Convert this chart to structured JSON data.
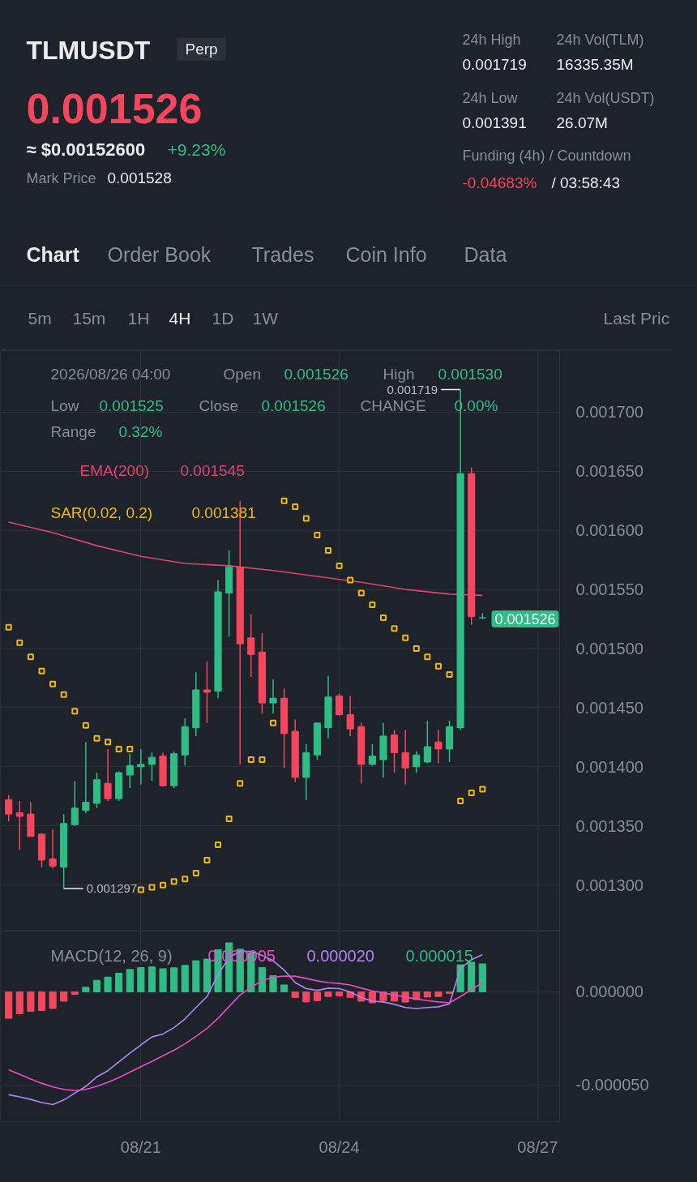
{
  "chart_data": [
    {
      "type": "other",
      "title": "TLMUSDT",
      "annotations": [
        "Perp",
        "0.001526",
        "≈ $0.00152600",
        "+9.23%",
        "Mark Price",
        "0.001528",
        "24h High",
        "0.001719",
        "24h Vol(TLM)",
        "16335.35M",
        "24h Low",
        "0.001391",
        "24h Vol(USDT)",
        "26.07M",
        "Funding (4h) / Countdown",
        "-0.04683%",
        "/ 03:58:43",
        "Chart",
        "Order Book",
        "Trades",
        "Coin Info",
        "Data",
        "5m",
        "15m",
        "1H",
        "4H",
        "1D",
        "1W",
        "Last Pric"
      ]
    },
    {
      "type": "candlestick",
      "x": [
        "2026-08-19T00:00",
        "2026-08-19T04:00",
        "2026-08-19T08:00",
        "2026-08-19T12:00",
        "2026-08-19T16:00",
        "2026-08-19T20:00",
        "2026-08-20T00:00",
        "2026-08-20T04:00",
        "2026-08-20T08:00",
        "2026-08-20T12:00",
        "2026-08-20T16:00",
        "2026-08-20T20:00",
        "2026-08-21T00:00",
        "2026-08-21T04:00",
        "2026-08-21T08:00",
        "2026-08-21T12:00",
        "2026-08-21T16:00",
        "2026-08-21T20:00",
        "2026-08-22T00:00",
        "2026-08-22T04:00",
        "2026-08-22T08:00",
        "2026-08-22T12:00",
        "2026-08-22T16:00",
        "2026-08-22T20:00",
        "2026-08-23T00:00",
        "2026-08-23T04:00",
        "2026-08-23T08:00",
        "2026-08-23T12:00",
        "2026-08-23T16:00",
        "2026-08-23T20:00",
        "2026-08-24T00:00",
        "2026-08-24T04:00",
        "2026-08-24T08:00",
        "2026-08-24T12:00",
        "2026-08-24T16:00",
        "2026-08-24T20:00",
        "2026-08-25T00:00",
        "2026-08-25T04:00",
        "2026-08-25T08:00",
        "2026-08-25T12:00",
        "2026-08-25T16:00",
        "2026-08-25T20:00",
        "2026-08-26T00:00",
        "2026-08-26T04:00"
      ],
      "ohlc": [
        [
          0.001372,
          0.001376,
          0.001354,
          0.00136
        ],
        [
          0.001361,
          0.001371,
          0.00133,
          0.001358
        ],
        [
          0.00136,
          0.00137,
          0.001341,
          0.001341
        ],
        [
          0.001343,
          0.001344,
          0.001315,
          0.001321
        ],
        [
          0.001322,
          0.001347,
          0.001314,
          0.001316
        ],
        [
          0.001315,
          0.00136,
          0.001297,
          0.001352
        ],
        [
          0.001351,
          0.001388,
          0.00135,
          0.001365
        ],
        [
          0.001363,
          0.001421,
          0.001361,
          0.00137
        ],
        [
          0.001369,
          0.001395,
          0.001365,
          0.001389
        ],
        [
          0.001386,
          0.001415,
          0.001371,
          0.001373
        ],
        [
          0.001373,
          0.001396,
          0.001371,
          0.001395
        ],
        [
          0.001393,
          0.001411,
          0.001382,
          0.001401
        ],
        [
          0.0014,
          0.001415,
          0.001385,
          0.001402
        ],
        [
          0.001402,
          0.001412,
          0.001388,
          0.001408
        ],
        [
          0.001409,
          0.001412,
          0.001383,
          0.001384
        ],
        [
          0.001384,
          0.001413,
          0.001382,
          0.001411
        ],
        [
          0.00141,
          0.001441,
          0.001401,
          0.001434
        ],
        [
          0.001433,
          0.00148,
          0.001426,
          0.001465
        ],
        [
          0.001465,
          0.001489,
          0.001437,
          0.001463
        ],
        [
          0.001464,
          0.001558,
          0.001458,
          0.001548
        ],
        [
          0.001547,
          0.001583,
          0.00151,
          0.001569
        ],
        [
          0.001569,
          0.001625,
          0.001402,
          0.001504
        ],
        [
          0.001509,
          0.001529,
          0.001476,
          0.001495
        ],
        [
          0.001497,
          0.001513,
          0.001445,
          0.001454
        ],
        [
          0.001454,
          0.001474,
          0.001445,
          0.001458
        ],
        [
          0.001458,
          0.001466,
          0.001399,
          0.001428
        ],
        [
          0.00143,
          0.00144,
          0.001387,
          0.001391
        ],
        [
          0.001391,
          0.001419,
          0.001372,
          0.001412
        ],
        [
          0.00141,
          0.001437,
          0.001406,
          0.001437
        ],
        [
          0.001433,
          0.001477,
          0.001424,
          0.001459
        ],
        [
          0.00146,
          0.001462,
          0.001443,
          0.001444
        ],
        [
          0.001444,
          0.00146,
          0.001426,
          0.001432
        ],
        [
          0.001434,
          0.001437,
          0.001386,
          0.001402
        ],
        [
          0.001402,
          0.001419,
          0.001401,
          0.001409
        ],
        [
          0.001406,
          0.001437,
          0.001391,
          0.001426
        ],
        [
          0.001427,
          0.001431,
          0.001395,
          0.001412
        ],
        [
          0.001412,
          0.001431,
          0.001385,
          0.001399
        ],
        [
          0.0014,
          0.001413,
          0.001395,
          0.00141
        ],
        [
          0.001404,
          0.001439,
          0.001403,
          0.001417
        ],
        [
          0.001421,
          0.001431,
          0.001403,
          0.001415
        ],
        [
          0.001415,
          0.001439,
          0.001404,
          0.001434
        ],
        [
          0.001433,
          0.001719,
          0.001431,
          0.001648
        ],
        [
          0.001648,
          0.001653,
          0.00152,
          0.001527
        ],
        [
          0.001526,
          0.00153,
          0.001525,
          0.001526
        ]
      ],
      "colors": [
        "#f6465d",
        "#f6465d",
        "#f6465d",
        "#f6465d",
        "#f6465d",
        "#2ebd85",
        "#2ebd85",
        "#2ebd85",
        "#2ebd85",
        "#f6465d",
        "#2ebd85",
        "#2ebd85",
        "#2ebd85",
        "#2ebd85",
        "#f6465d",
        "#2ebd85",
        "#2ebd85",
        "#2ebd85",
        "#f6465d",
        "#2ebd85",
        "#2ebd85",
        "#f6465d",
        "#f6465d",
        "#f6465d",
        "#2ebd85",
        "#f6465d",
        "#f6465d",
        "#2ebd85",
        "#2ebd85",
        "#2ebd85",
        "#f6465d",
        "#f6465d",
        "#f6465d",
        "#2ebd85",
        "#2ebd85",
        "#f6465d",
        "#f6465d",
        "#2ebd85",
        "#2ebd85",
        "#f6465d",
        "#2ebd85",
        "#2ebd85",
        "#f6465d",
        "#2ebd85"
      ],
      "series": [
        {
          "name": "EMA(200)",
          "type": "line",
          "color": "#e0436f",
          "x": [
            "2026-08-19T00:00",
            "2026-08-19T16:00",
            "2026-08-20T08:00",
            "2026-08-21T00:00",
            "2026-08-21T16:00",
            "2026-08-22T08:00",
            "2026-08-23T00:00",
            "2026-08-23T16:00",
            "2026-08-24T08:00",
            "2026-08-25T00:00",
            "2026-08-25T16:00",
            "2026-08-26T04:00"
          ],
          "values": [
            0.001607,
            0.001598,
            0.001587,
            0.001578,
            0.001572,
            0.00157,
            0.001566,
            0.001561,
            0.001556,
            0.00155,
            0.001546,
            0.001545
          ]
        },
        {
          "name": "SAR(0.02, 0.2)",
          "type": "scatter",
          "marker": "square",
          "color": "#f0b90b",
          "values": [
            0.001518,
            0.001505,
            0.001493,
            0.001481,
            0.00147,
            0.001461,
            0.001447,
            0.001435,
            0.001424,
            0.001421,
            0.001415,
            0.001415,
            0.001296,
            0.001298,
            0.0013,
            0.001303,
            0.001305,
            0.00131,
            0.001321,
            0.001334,
            0.001356,
            0.001386,
            0.001406,
            0.001406,
            0.001437,
            0.001625,
            0.00162,
            0.00161,
            0.001596,
            0.001583,
            0.00157,
            0.001558,
            0.001547,
            0.001537,
            0.001526,
            0.001517,
            0.001509,
            0.0015,
            0.001493,
            0.001485,
            0.001478,
            0.001371,
            0.001378,
            0.001381
          ]
        }
      ],
      "xlim": [
        "2026-08-18T21:00",
        "2026-08-27T08:00"
      ],
      "xticks": [
        {
          "value": "2026-08-21",
          "label": null
        },
        {
          "value": "2026-08-24",
          "label": null
        },
        {
          "value": "2026-08-27",
          "label": null
        }
      ],
      "ylim": [
        0.001261,
        0.001752
      ],
      "yticks": [
        {
          "value": 0.0013,
          "label": "0.001300"
        },
        {
          "value": 0.00135,
          "label": "0.001350"
        },
        {
          "value": 0.0014,
          "label": "0.001400"
        },
        {
          "value": 0.00145,
          "label": "0.001450"
        },
        {
          "value": 0.0015,
          "label": "0.001500"
        },
        {
          "value": 0.00155,
          "label": "0.001550"
        },
        {
          "value": 0.0016,
          "label": "0.001600"
        },
        {
          "value": 0.00165,
          "label": "0.001650"
        },
        {
          "value": 0.0017,
          "label": "0.001700"
        }
      ],
      "grid": true,
      "tick_labels": "y",
      "annotations": [
        "2026/08/26 04:00",
        "Open",
        "0.001526",
        "High",
        "0.001530",
        "Low",
        "0.001525",
        "Close",
        "0.001526",
        "CHANGE",
        "0.00%",
        "Range",
        "0.32%",
        "0.001545",
        "0.001381",
        {
          "text": "0.001719",
          "x": "2026-08-25T20:00",
          "y": 0.001719
        },
        {
          "text": "0.001297",
          "x": "2026-08-19T20:00",
          "y": 0.001297
        },
        "0.001526"
      ]
    },
    {
      "type": "bar",
      "title": "MACD(12, 26, 9)",
      "x": [
        "2026-08-19T00:00",
        "2026-08-19T04:00",
        "2026-08-19T08:00",
        "2026-08-19T12:00",
        "2026-08-19T16:00",
        "2026-08-19T20:00",
        "2026-08-20T00:00",
        "2026-08-20T04:00",
        "2026-08-20T08:00",
        "2026-08-20T12:00",
        "2026-08-20T16:00",
        "2026-08-20T20:00",
        "2026-08-21T00:00",
        "2026-08-21T04:00",
        "2026-08-21T08:00",
        "2026-08-21T12:00",
        "2026-08-21T16:00",
        "2026-08-21T20:00",
        "2026-08-22T00:00",
        "2026-08-22T04:00",
        "2026-08-22T08:00",
        "2026-08-22T12:00",
        "2026-08-22T16:00",
        "2026-08-22T20:00",
        "2026-08-23T00:00",
        "2026-08-23T04:00",
        "2026-08-23T08:00",
        "2026-08-23T12:00",
        "2026-08-23T16:00",
        "2026-08-23T20:00",
        "2026-08-24T00:00",
        "2026-08-24T04:00",
        "2026-08-24T08:00",
        "2026-08-24T12:00",
        "2026-08-24T16:00",
        "2026-08-24T20:00",
        "2026-08-25T00:00",
        "2026-08-25T04:00",
        "2026-08-25T08:00",
        "2026-08-25T12:00",
        "2026-08-25T16:00",
        "2026-08-25T20:00",
        "2026-08-26T00:00",
        "2026-08-26T04:00"
      ],
      "series": [
        {
          "type": "bar",
          "colors": [
            "#f6465d",
            "#f6465d",
            "#f6465d",
            "#f6465d",
            "#f6465d",
            "#f6465d",
            "#f6465d",
            "#2ebd85",
            "#2ebd85",
            "#2ebd85",
            "#2ebd85",
            "#2ebd85",
            "#2ebd85",
            "#2ebd85",
            "#2ebd85",
            "#2ebd85",
            "#2ebd85",
            "#2ebd85",
            "#2ebd85",
            "#2ebd85",
            "#2ebd85",
            "#2ebd85",
            "#2ebd85",
            "#2ebd85",
            "#2ebd85",
            "#2ebd85",
            "#f6465d",
            "#f6465d",
            "#f6465d",
            "#f6465d",
            "#f6465d",
            "#f6465d",
            "#f6465d",
            "#f6465d",
            "#f6465d",
            "#f6465d",
            "#f6465d",
            "#f6465d",
            "#f6465d",
            "#f6465d",
            "#f6465d",
            "#2ebd85",
            "#2ebd85",
            "#2ebd85"
          ],
          "values": [
            -1.42e-05,
            -1.17e-05,
            -1.05e-05,
            -1e-05,
            -8.9e-06,
            -5e-06,
            -1.3e-06,
            2.5e-06,
            6.2e-06,
            7.9e-06,
            1e-05,
            1.2e-05,
            1.3e-05,
            1.34e-05,
            1.24e-05,
            1.29e-05,
            1.42e-05,
            1.67e-05,
            1.76e-05,
            2.26e-05,
            2.63e-05,
            2.29e-05,
            2.09e-05,
            1.3e-05,
            8.7e-06,
            3.7e-06,
            -3e-06,
            -5.4e-06,
            -4.7e-06,
            -2.5e-06,
            -2.2e-06,
            -3e-06,
            -5e-06,
            -5.9e-06,
            -4.7e-06,
            -5e-06,
            -5.5e-06,
            -4.2e-06,
            -2.8e-06,
            -2.5e-06,
            -8e-07,
            1.45e-05,
            1.59e-05,
            1.5e-05
          ]
        },
        {
          "type": "line",
          "color": "#b383f5",
          "values": [
            -5.52e-05,
            -5.63e-05,
            -5.77e-05,
            -5.94e-05,
            -6.05e-05,
            -5.8e-05,
            -5.43e-05,
            -5.07e-05,
            -4.56e-05,
            -4.23e-05,
            -3.76e-05,
            -3.29e-05,
            -2.84e-05,
            -2.42e-05,
            -2.26e-05,
            -1.92e-05,
            -1.45e-05,
            -8.4e-06,
            -2.5e-06,
            9.2e-06,
            1.84e-05,
            2.17e-05,
            2.17e-05,
            1.96e-05,
            1.67e-05,
            1.17e-05,
            5e-06,
            1.7e-06,
            8e-07,
            2e-06,
            1.7e-06,
            0.0,
            -3e-06,
            -5e-06,
            -5.4e-06,
            -6.7e-06,
            -8.4e-06,
            -8.9e-06,
            -8.4e-06,
            -8e-06,
            -6.4e-06,
            1.25e-05,
            1.72e-05,
            2e-05
          ]
        },
        {
          "type": "line",
          "color": "#e84cc5",
          "values": [
            -4.18e-05,
            -4.43e-05,
            -4.68e-05,
            -4.9e-05,
            -5.1e-05,
            -5.23e-05,
            -5.3e-05,
            -5.23e-05,
            -5.07e-05,
            -4.85e-05,
            -4.6e-05,
            -4.31e-05,
            -4.01e-05,
            -3.73e-05,
            -3.43e-05,
            -3.13e-05,
            -2.79e-05,
            -2.39e-05,
            -1.96e-05,
            -1.42e-05,
            -7.9e-06,
            -1.7e-06,
            2.5e-06,
            5.9e-06,
            7.9e-06,
            8.4e-06,
            8.4e-06,
            7.2e-06,
            5.9e-06,
            5e-06,
            4.5e-06,
            3.7e-06,
            2e-06,
            5e-07,
            -5e-07,
            -1.7e-06,
            -2.8e-06,
            -3.8e-06,
            -4.7e-06,
            -5.4e-06,
            -5.9e-06,
            -2.5e-06,
            1.2e-06,
            5e-06
          ]
        }
      ],
      "xlim": [
        "2026-08-18T21:00",
        "2026-08-27T08:00"
      ],
      "xticks": [
        {
          "value": "2026-08-21",
          "label": "08/21"
        },
        {
          "value": "2026-08-24",
          "label": "08/24"
        },
        {
          "value": "2026-08-27",
          "label": "08/27"
        }
      ],
      "ylim": [
        -6.96e-05,
        3.26e-05
      ],
      "yticks": [
        {
          "value": -5e-05,
          "label": "-0.000050"
        },
        {
          "value": 0.0,
          "label": "0.000000"
        }
      ],
      "grid": true,
      "annotations": [
        "0.000005",
        "0.000020",
        "0.000015"
      ]
    }
  ]
}
